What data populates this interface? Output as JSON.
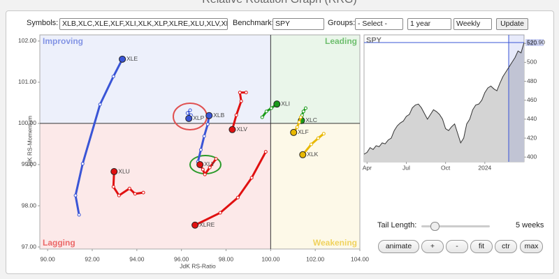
{
  "header": {
    "title": "Relative Rotation Graph (RRG)"
  },
  "controls": {
    "symbols_label": "Symbols:",
    "symbols": "XLB,XLC,XLE,XLF,XLI,XLK,XLP,XLRE,XLU,XLV,XL",
    "benchmark_label": "Benchmark:",
    "benchmark": "SPY",
    "groups_label": "Groups:",
    "groups": "- Select -",
    "period": "1 year",
    "frequency": "Weekly",
    "update": "Update",
    "tail_label": "Tail Length:",
    "tail_length": "5 weeks",
    "buttons": [
      "animate",
      "+",
      "-",
      "fit",
      "ctr",
      "max"
    ]
  },
  "chart_data": [
    {
      "type": "scatter",
      "x_label": "JdK RS-Ratio",
      "y_label": "JdK RS-Momentum",
      "xlim": [
        89.65,
        104
      ],
      "ylim": [
        96.95,
        102.15
      ],
      "center": {
        "x": 100,
        "y": 100
      },
      "xticks": [
        {
          "value": 90,
          "label": "90.00"
        },
        {
          "value": 92,
          "label": "92.00"
        },
        {
          "value": 94,
          "label": "94.00"
        },
        {
          "value": 96,
          "label": "96.00"
        },
        {
          "value": 98,
          "label": "98.00"
        },
        {
          "value": 100,
          "label": "100.00"
        },
        {
          "value": 102,
          "label": "102.00"
        },
        {
          "value": 104,
          "label": "104.00"
        }
      ],
      "yticks": [
        {
          "value": 97,
          "label": "97.00"
        },
        {
          "value": 98,
          "label": "98.00"
        },
        {
          "value": 99,
          "label": "99.00"
        },
        {
          "value": 100,
          "label": "100.00"
        },
        {
          "value": 101,
          "label": "101.00"
        },
        {
          "value": 102,
          "label": "102.00"
        }
      ],
      "quadrants": [
        {
          "name": "Improving",
          "color": "#3a55d6"
        },
        {
          "name": "Leading",
          "color": "#1a9a1a"
        },
        {
          "name": "Lagging",
          "color": "#e01010"
        },
        {
          "name": "Weakening",
          "color": "#e8b800"
        }
      ],
      "series": [
        {
          "name": "XLE",
          "color": "#3a55d6",
          "x": [
            91.41,
            91.25,
            91.57,
            92.35,
            92.95,
            93.35
          ],
          "values": [
            97.78,
            98.25,
            99.02,
            100.46,
            101.14,
            101.56
          ]
        },
        {
          "name": "XLB",
          "color": "#3a55d6",
          "x": [
            96.74,
            96.87,
            97.02,
            97.18,
            97.24
          ],
          "values": [
            99.07,
            99.36,
            99.69,
            99.98,
            100.19
          ]
        },
        {
          "name": "XLP",
          "color": "#3a55d6",
          "x": [
            96.39,
            96.27,
            96.43,
            96.33
          ],
          "values": [
            100.32,
            100.25,
            100.2,
            100.12
          ]
        },
        {
          "name": "XLV",
          "color": "#e01010",
          "x": [
            98.9,
            98.62,
            98.68,
            98.46,
            98.28
          ],
          "values": [
            100.75,
            100.75,
            100.54,
            100.2,
            99.85
          ]
        },
        {
          "name": "XLU",
          "color": "#e01010",
          "x": [
            94.29,
            93.92,
            93.67,
            93.2,
            92.95,
            92.98
          ],
          "values": [
            98.32,
            98.29,
            98.42,
            98.25,
            98.46,
            98.83
          ]
        },
        {
          "name": "XLY",
          "color": "#e01010",
          "x": [
            97.55,
            97.27,
            97.05,
            96.96,
            96.83
          ],
          "values": [
            99.14,
            98.93,
            98.76,
            98.88,
            99.0
          ]
        },
        {
          "name": "XLRE",
          "color": "#e01010",
          "x": [
            99.78,
            99.15,
            98.53,
            97.74,
            96.61
          ],
          "values": [
            99.31,
            98.68,
            98.2,
            97.83,
            97.53
          ]
        },
        {
          "name": "XLI",
          "color": "#1a9a1a",
          "x": [
            99.62,
            99.81,
            100.03,
            100.28
          ],
          "values": [
            100.15,
            100.29,
            100.37,
            100.47
          ]
        },
        {
          "name": "XLC",
          "color": "#1a9a1a",
          "x": [
            101.57,
            101.47,
            101.41,
            101.38
          ],
          "values": [
            100.37,
            100.29,
            100.2,
            100.07
          ]
        },
        {
          "name": "XLF",
          "color": "#e8b800",
          "x": [
            101.35,
            101.28,
            101.19,
            101.03
          ],
          "values": [
            100.15,
            100.03,
            99.91,
            99.78
          ]
        },
        {
          "name": "XLK",
          "color": "#e8b800",
          "x": [
            102.38,
            102.13,
            101.82,
            101.44
          ],
          "values": [
            99.75,
            99.64,
            99.49,
            99.24
          ]
        }
      ]
    },
    {
      "type": "area",
      "title": "SPY",
      "color": "#333333",
      "ylim": [
        395,
        529
      ],
      "yticks": [
        400,
        420,
        440,
        460,
        480,
        500,
        520
      ],
      "xticks": [
        {
          "value": 1,
          "label": "Apr"
        },
        {
          "value": 14,
          "label": "Jul"
        },
        {
          "value": 27,
          "label": "Oct"
        },
        {
          "value": 40,
          "label": "2024"
        }
      ],
      "values": [
        403,
        405,
        410,
        408,
        412,
        411,
        415,
        414,
        418,
        420,
        428,
        433,
        436,
        438,
        443,
        445,
        452,
        455,
        456,
        452,
        446,
        440,
        445,
        450,
        448,
        445,
        440,
        430,
        428,
        432,
        435,
        425,
        415,
        420,
        435,
        440,
        450,
        455,
        456,
        460,
        468,
        473,
        475,
        472,
        470,
        478,
        485,
        490,
        495,
        500,
        505,
        512,
        510,
        520.9
      ],
      "value_labels": [
        null,
        null,
        null,
        null,
        null,
        null,
        null,
        null,
        null,
        null,
        null,
        null,
        null,
        null,
        null,
        null,
        null,
        null,
        null,
        null,
        null,
        null,
        null,
        null,
        null,
        null,
        null,
        null,
        null,
        null,
        null,
        null,
        null,
        null,
        null,
        null,
        null,
        null,
        null,
        null,
        null,
        null,
        null,
        null,
        null,
        null,
        null,
        null,
        null,
        null,
        null,
        null,
        null,
        "520.90"
      ]
    }
  ]
}
